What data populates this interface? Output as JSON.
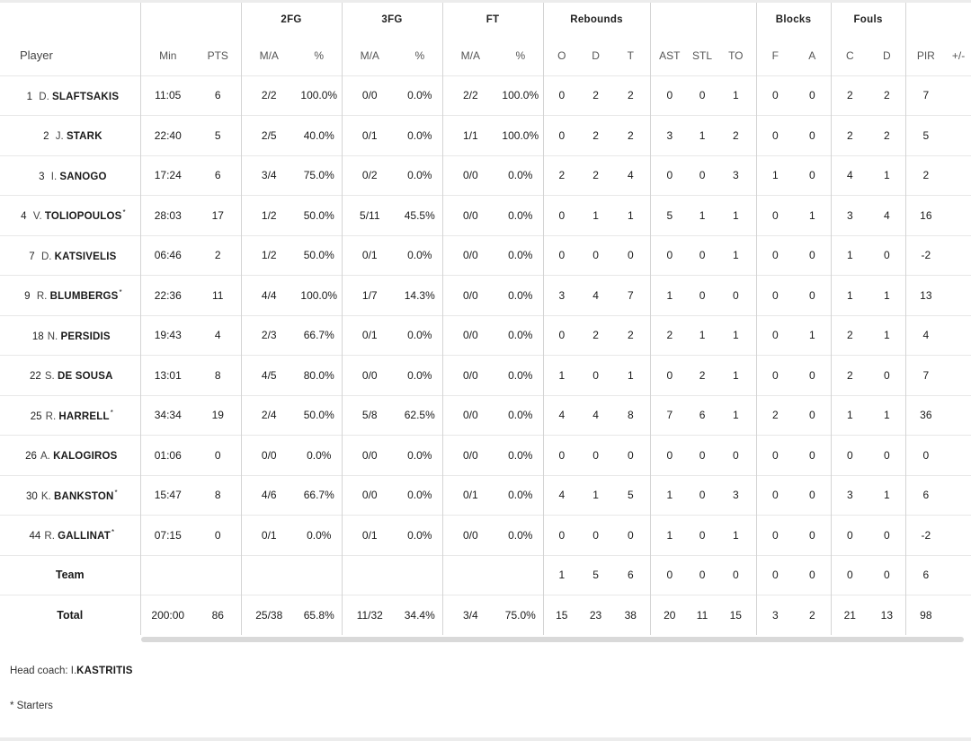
{
  "headers": {
    "groups": {
      "fg2": "2FG",
      "fg3": "3FG",
      "ft": "FT",
      "rebounds": "Rebounds",
      "blocks": "Blocks",
      "fouls": "Fouls"
    },
    "columns": {
      "player": "Player",
      "min": "Min",
      "pts": "PTS",
      "fg2_ma": "M/A",
      "fg2_pct": "%",
      "fg3_ma": "M/A",
      "fg3_pct": "%",
      "ft_ma": "M/A",
      "ft_pct": "%",
      "reb_o": "O",
      "reb_d": "D",
      "reb_t": "T",
      "ast": "AST",
      "stl": "STL",
      "to": "TO",
      "blk_f": "F",
      "blk_a": "A",
      "foul_c": "C",
      "foul_d": "D",
      "pir": "PIR",
      "pm": "+/-"
    }
  },
  "players": [
    {
      "num": "1",
      "initial": "D.",
      "name": "SLAFTSAKIS",
      "starter": "",
      "min": "11:05",
      "pts": "6",
      "fg2_ma": "2/2",
      "fg2_pct": "100.0%",
      "fg3_ma": "0/0",
      "fg3_pct": "0.0%",
      "ft_ma": "2/2",
      "ft_pct": "100.0%",
      "reb_o": "0",
      "reb_d": "2",
      "reb_t": "2",
      "ast": "0",
      "stl": "0",
      "to": "1",
      "blk_f": "0",
      "blk_a": "0",
      "foul_c": "2",
      "foul_d": "2",
      "pir": "7",
      "pm": ""
    },
    {
      "num": "2",
      "initial": "J.",
      "name": "STARK",
      "starter": "",
      "min": "22:40",
      "pts": "5",
      "fg2_ma": "2/5",
      "fg2_pct": "40.0%",
      "fg3_ma": "0/1",
      "fg3_pct": "0.0%",
      "ft_ma": "1/1",
      "ft_pct": "100.0%",
      "reb_o": "0",
      "reb_d": "2",
      "reb_t": "2",
      "ast": "3",
      "stl": "1",
      "to": "2",
      "blk_f": "0",
      "blk_a": "0",
      "foul_c": "2",
      "foul_d": "2",
      "pir": "5",
      "pm": ""
    },
    {
      "num": "3",
      "initial": "I.",
      "name": "SANOGO",
      "starter": "",
      "min": "17:24",
      "pts": "6",
      "fg2_ma": "3/4",
      "fg2_pct": "75.0%",
      "fg3_ma": "0/2",
      "fg3_pct": "0.0%",
      "ft_ma": "0/0",
      "ft_pct": "0.0%",
      "reb_o": "2",
      "reb_d": "2",
      "reb_t": "4",
      "ast": "0",
      "stl": "0",
      "to": "3",
      "blk_f": "1",
      "blk_a": "0",
      "foul_c": "4",
      "foul_d": "1",
      "pir": "2",
      "pm": ""
    },
    {
      "num": "4",
      "initial": "V.",
      "name": "TOLIOPOULOS",
      "starter": "*",
      "min": "28:03",
      "pts": "17",
      "fg2_ma": "1/2",
      "fg2_pct": "50.0%",
      "fg3_ma": "5/11",
      "fg3_pct": "45.5%",
      "ft_ma": "0/0",
      "ft_pct": "0.0%",
      "reb_o": "0",
      "reb_d": "1",
      "reb_t": "1",
      "ast": "5",
      "stl": "1",
      "to": "1",
      "blk_f": "0",
      "blk_a": "1",
      "foul_c": "3",
      "foul_d": "4",
      "pir": "16",
      "pm": ""
    },
    {
      "num": "7",
      "initial": "D.",
      "name": "KATSIVELIS",
      "starter": "",
      "min": "06:46",
      "pts": "2",
      "fg2_ma": "1/2",
      "fg2_pct": "50.0%",
      "fg3_ma": "0/1",
      "fg3_pct": "0.0%",
      "ft_ma": "0/0",
      "ft_pct": "0.0%",
      "reb_o": "0",
      "reb_d": "0",
      "reb_t": "0",
      "ast": "0",
      "stl": "0",
      "to": "1",
      "blk_f": "0",
      "blk_a": "0",
      "foul_c": "1",
      "foul_d": "0",
      "pir": "-2",
      "pm": ""
    },
    {
      "num": "9",
      "initial": "R.",
      "name": "BLUMBERGS",
      "starter": "*",
      "min": "22:36",
      "pts": "11",
      "fg2_ma": "4/4",
      "fg2_pct": "100.0%",
      "fg3_ma": "1/7",
      "fg3_pct": "14.3%",
      "ft_ma": "0/0",
      "ft_pct": "0.0%",
      "reb_o": "3",
      "reb_d": "4",
      "reb_t": "7",
      "ast": "1",
      "stl": "0",
      "to": "0",
      "blk_f": "0",
      "blk_a": "0",
      "foul_c": "1",
      "foul_d": "1",
      "pir": "13",
      "pm": ""
    },
    {
      "num": "18",
      "initial": "N.",
      "name": "PERSIDIS",
      "starter": "",
      "min": "19:43",
      "pts": "4",
      "fg2_ma": "2/3",
      "fg2_pct": "66.7%",
      "fg3_ma": "0/1",
      "fg3_pct": "0.0%",
      "ft_ma": "0/0",
      "ft_pct": "0.0%",
      "reb_o": "0",
      "reb_d": "2",
      "reb_t": "2",
      "ast": "2",
      "stl": "1",
      "to": "1",
      "blk_f": "0",
      "blk_a": "1",
      "foul_c": "2",
      "foul_d": "1",
      "pir": "4",
      "pm": ""
    },
    {
      "num": "22",
      "initial": "S.",
      "name": "DE SOUSA",
      "starter": "",
      "min": "13:01",
      "pts": "8",
      "fg2_ma": "4/5",
      "fg2_pct": "80.0%",
      "fg3_ma": "0/0",
      "fg3_pct": "0.0%",
      "ft_ma": "0/0",
      "ft_pct": "0.0%",
      "reb_o": "1",
      "reb_d": "0",
      "reb_t": "1",
      "ast": "0",
      "stl": "2",
      "to": "1",
      "blk_f": "0",
      "blk_a": "0",
      "foul_c": "2",
      "foul_d": "0",
      "pir": "7",
      "pm": ""
    },
    {
      "num": "25",
      "initial": "R.",
      "name": "HARRELL",
      "starter": "*",
      "min": "34:34",
      "pts": "19",
      "fg2_ma": "2/4",
      "fg2_pct": "50.0%",
      "fg3_ma": "5/8",
      "fg3_pct": "62.5%",
      "ft_ma": "0/0",
      "ft_pct": "0.0%",
      "reb_o": "4",
      "reb_d": "4",
      "reb_t": "8",
      "ast": "7",
      "stl": "6",
      "to": "1",
      "blk_f": "2",
      "blk_a": "0",
      "foul_c": "1",
      "foul_d": "1",
      "pir": "36",
      "pm": ""
    },
    {
      "num": "26",
      "initial": "A.",
      "name": "KALOGIROS",
      "starter": "",
      "min": "01:06",
      "pts": "0",
      "fg2_ma": "0/0",
      "fg2_pct": "0.0%",
      "fg3_ma": "0/0",
      "fg3_pct": "0.0%",
      "ft_ma": "0/0",
      "ft_pct": "0.0%",
      "reb_o": "0",
      "reb_d": "0",
      "reb_t": "0",
      "ast": "0",
      "stl": "0",
      "to": "0",
      "blk_f": "0",
      "blk_a": "0",
      "foul_c": "0",
      "foul_d": "0",
      "pir": "0",
      "pm": ""
    },
    {
      "num": "30",
      "initial": "K.",
      "name": "BANKSTON",
      "starter": "*",
      "min": "15:47",
      "pts": "8",
      "fg2_ma": "4/6",
      "fg2_pct": "66.7%",
      "fg3_ma": "0/0",
      "fg3_pct": "0.0%",
      "ft_ma": "0/1",
      "ft_pct": "0.0%",
      "reb_o": "4",
      "reb_d": "1",
      "reb_t": "5",
      "ast": "1",
      "stl": "0",
      "to": "3",
      "blk_f": "0",
      "blk_a": "0",
      "foul_c": "3",
      "foul_d": "1",
      "pir": "6",
      "pm": ""
    },
    {
      "num": "44",
      "initial": "R.",
      "name": "GALLINAT",
      "starter": "*",
      "min": "07:15",
      "pts": "0",
      "fg2_ma": "0/1",
      "fg2_pct": "0.0%",
      "fg3_ma": "0/1",
      "fg3_pct": "0.0%",
      "ft_ma": "0/0",
      "ft_pct": "0.0%",
      "reb_o": "0",
      "reb_d": "0",
      "reb_t": "0",
      "ast": "1",
      "stl": "0",
      "to": "1",
      "blk_f": "0",
      "blk_a": "0",
      "foul_c": "0",
      "foul_d": "0",
      "pir": "-2",
      "pm": ""
    }
  ],
  "team": {
    "label": "Team",
    "min": "",
    "pts": "",
    "fg2_ma": "",
    "fg2_pct": "",
    "fg3_ma": "",
    "fg3_pct": "",
    "ft_ma": "",
    "ft_pct": "",
    "reb_o": "1",
    "reb_d": "5",
    "reb_t": "6",
    "ast": "0",
    "stl": "0",
    "to": "0",
    "blk_f": "0",
    "blk_a": "0",
    "foul_c": "0",
    "foul_d": "0",
    "pir": "6",
    "pm": ""
  },
  "total": {
    "label": "Total",
    "min": "200:00",
    "pts": "86",
    "fg2_ma": "25/38",
    "fg2_pct": "65.8%",
    "fg3_ma": "11/32",
    "fg3_pct": "34.4%",
    "ft_ma": "3/4",
    "ft_pct": "75.0%",
    "reb_o": "15",
    "reb_d": "23",
    "reb_t": "38",
    "ast": "20",
    "stl": "11",
    "to": "15",
    "blk_f": "3",
    "blk_a": "2",
    "foul_c": "21",
    "foul_d": "13",
    "pir": "98",
    "pm": ""
  },
  "footer": {
    "coach_label": "Head coach:",
    "coach_initial": "I.",
    "coach_name": "KASTRITIS",
    "starters_note": "* Starters"
  }
}
